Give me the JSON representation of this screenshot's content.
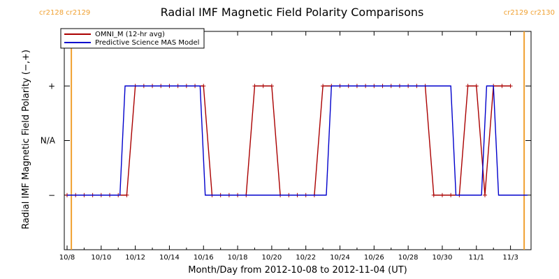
{
  "chart_data": {
    "type": "line",
    "title": "Radial IMF Magnetic Field Polarity Comparisons",
    "xlabel": "Month/Day from 2012-10-08 to 2012-11-04 (UT)",
    "ylabel": "Radial IMF Magnetic Field Polarity (−,+)",
    "x_tick_labels": [
      "10/8",
      "10/10",
      "10/12",
      "10/14",
      "10/16",
      "10/18",
      "10/20",
      "10/22",
      "10/24",
      "10/26",
      "10/28",
      "10/30",
      "11/1",
      "11/3"
    ],
    "y_tick_labels": [
      "+",
      "N/A",
      "−"
    ],
    "y_levels": {
      "plus": 1,
      "na": 0,
      "minus": -1
    },
    "ylim": [
      -2,
      2
    ],
    "xlim_days": [
      0,
      27
    ],
    "carrington_markers": [
      {
        "day": 0.25,
        "label": "cr2128 cr2129",
        "side": "left"
      },
      {
        "day": 26.8,
        "label": "cr2129 cr2130",
        "side": "right"
      }
    ],
    "legend": [
      {
        "name": "OMNI_M (12-hr avg)",
        "color": "#aa0000"
      },
      {
        "name": "Predictive Science MAS Model",
        "color": "#0000cc"
      }
    ],
    "series": [
      {
        "name": "OMNI_M (12-hr avg)",
        "color": "#aa0000",
        "markers": true,
        "points": [
          [
            0,
            -1
          ],
          [
            0.5,
            -1
          ],
          [
            1,
            -1
          ],
          [
            1.5,
            -1
          ],
          [
            2,
            -1
          ],
          [
            2.5,
            -1
          ],
          [
            3,
            -1
          ],
          [
            3.5,
            -1
          ],
          [
            4,
            1
          ],
          [
            4.5,
            1
          ],
          [
            5,
            1
          ],
          [
            5.5,
            1
          ],
          [
            6,
            1
          ],
          [
            6.5,
            1
          ],
          [
            7,
            1
          ],
          [
            7.5,
            1
          ],
          [
            8,
            1
          ],
          [
            8.5,
            -1
          ],
          [
            9,
            -1
          ],
          [
            9.5,
            -1
          ],
          [
            10,
            -1
          ],
          [
            10.5,
            -1
          ],
          [
            11,
            1
          ],
          [
            11.5,
            1
          ],
          [
            12,
            1
          ],
          [
            12.5,
            -1
          ],
          [
            13,
            -1
          ],
          [
            13.5,
            -1
          ],
          [
            14,
            -1
          ],
          [
            14.5,
            -1
          ],
          [
            15,
            1
          ],
          [
            15.5,
            1
          ],
          [
            16,
            1
          ],
          [
            16.5,
            1
          ],
          [
            17,
            1
          ],
          [
            17.5,
            1
          ],
          [
            18,
            1
          ],
          [
            18.5,
            1
          ],
          [
            19,
            1
          ],
          [
            19.5,
            1
          ],
          [
            20,
            1
          ],
          [
            20.5,
            1
          ],
          [
            21,
            1
          ],
          [
            21.5,
            -1
          ],
          [
            22,
            -1
          ],
          [
            22.5,
            -1
          ],
          [
            23,
            -1
          ],
          [
            23.5,
            1
          ],
          [
            24,
            1
          ],
          [
            24.5,
            -1
          ],
          [
            25,
            1
          ],
          [
            25.5,
            1
          ],
          [
            26,
            1
          ]
        ]
      },
      {
        "name": "Predictive Science MAS Model",
        "color": "#0000cc",
        "markers": false,
        "points": [
          [
            0,
            -1
          ],
          [
            3.1,
            -1
          ],
          [
            3.4,
            1
          ],
          [
            7.8,
            1
          ],
          [
            8.1,
            -1
          ],
          [
            15.2,
            -1
          ],
          [
            15.5,
            1
          ],
          [
            22.5,
            1
          ],
          [
            22.8,
            -1
          ],
          [
            24.3,
            -1
          ],
          [
            24.6,
            1
          ],
          [
            25,
            1
          ],
          [
            25.3,
            -1
          ],
          [
            27,
            -1
          ]
        ]
      }
    ]
  }
}
